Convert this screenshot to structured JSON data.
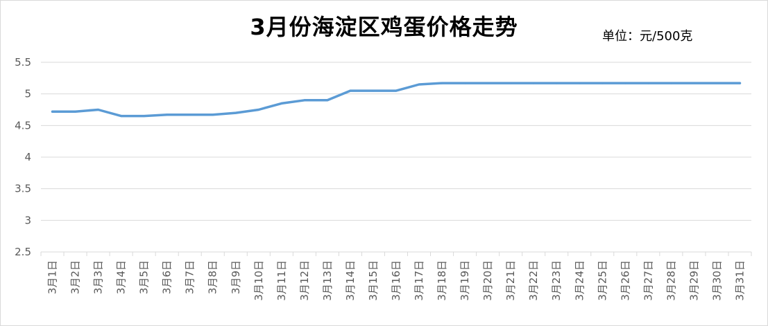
{
  "chart_data": {
    "type": "line",
    "title": "3月份海淀区鸡蛋价格走势",
    "unit_label": "单位：元/500克",
    "ylim": [
      2.5,
      5.5
    ],
    "yticks": [
      "5.5",
      "5",
      "4.5",
      "4",
      "3.5",
      "3",
      "2.5"
    ],
    "ytick_values": [
      5.5,
      5.0,
      4.5,
      4.0,
      3.5,
      3.0,
      2.5
    ],
    "grid": true,
    "legend": "none",
    "line_color": "#5b9bd5",
    "categories": [
      "3月1日",
      "3月2日",
      "3月3日",
      "3月4日",
      "3月5日",
      "3月6日",
      "3月7日",
      "3月8日",
      "3月9日",
      "3月10日",
      "3月11日",
      "3月12日",
      "3月13日",
      "3月14日",
      "3月15日",
      "3月16日",
      "3月17日",
      "3月18日",
      "3月19日",
      "3月20日",
      "3月21日",
      "3月22日",
      "3月23日",
      "3月24日",
      "3月25日",
      "3月26日",
      "3月27日",
      "3月28日",
      "3月29日",
      "3月30日",
      "3月31日"
    ],
    "series": [
      {
        "values": [
          4.72,
          4.72,
          4.75,
          4.65,
          4.65,
          4.67,
          4.67,
          4.67,
          4.7,
          4.75,
          4.85,
          4.9,
          4.9,
          5.05,
          5.05,
          5.05,
          5.15,
          5.17,
          5.17,
          5.17,
          5.17,
          5.17,
          5.17,
          5.17,
          5.17,
          5.17,
          5.17,
          5.17,
          5.17,
          5.17,
          5.17
        ]
      }
    ]
  }
}
